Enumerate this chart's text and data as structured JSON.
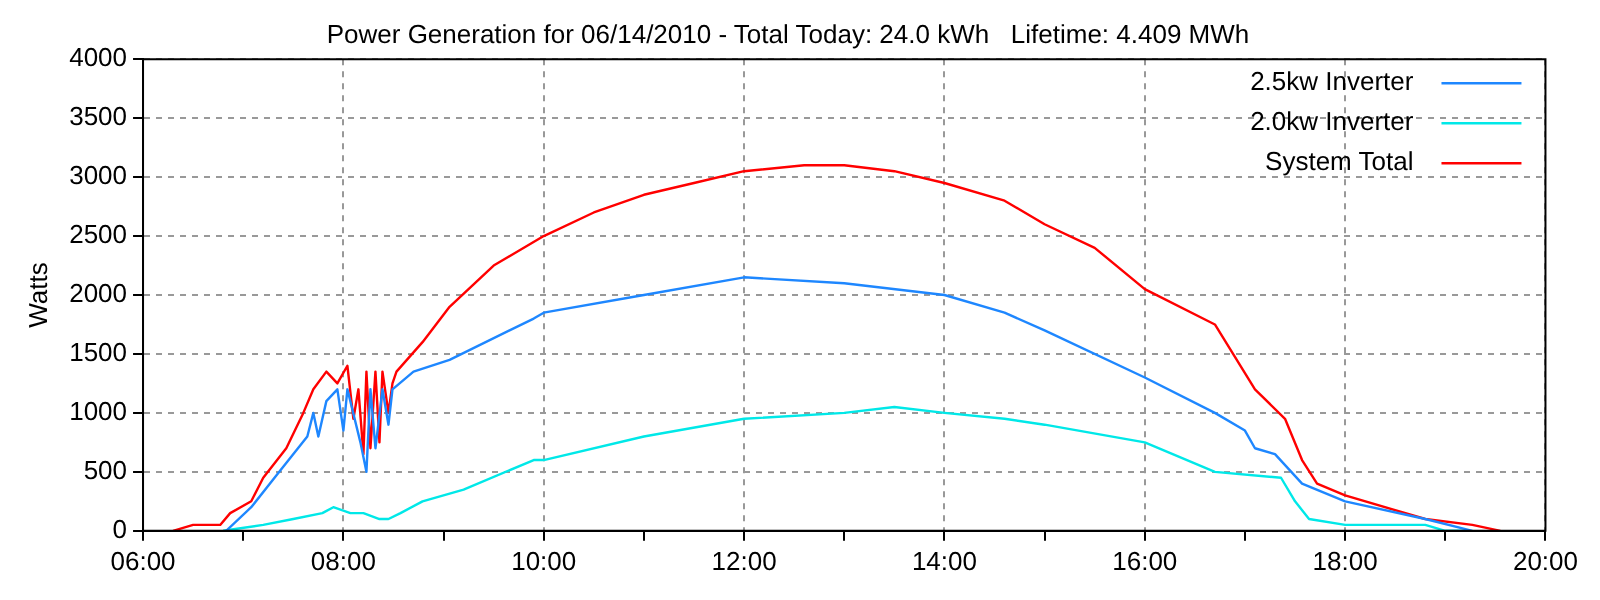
{
  "chart_data": {
    "type": "line",
    "title": "Power Generation for 06/14/2010 - Total Today: 24.0 kWh   Lifetime: 4.409 MWh",
    "ylabel": "Watts",
    "xlim": [
      6,
      20
    ],
    "xticks": [
      {
        "value": 6,
        "label": "06:00"
      },
      {
        "value": 7,
        "label": null
      },
      {
        "value": 8,
        "label": "08:00"
      },
      {
        "value": 9,
        "label": null
      },
      {
        "value": 10,
        "label": "10:00"
      },
      {
        "value": 11,
        "label": null
      },
      {
        "value": 12,
        "label": "12:00"
      },
      {
        "value": 13,
        "label": null
      },
      {
        "value": 14,
        "label": "14:00"
      },
      {
        "value": 15,
        "label": null
      },
      {
        "value": 16,
        "label": "16:00"
      },
      {
        "value": 17,
        "label": null
      },
      {
        "value": 18,
        "label": "18:00"
      },
      {
        "value": 19,
        "label": null
      },
      {
        "value": 20,
        "label": "20:00"
      }
    ],
    "ylim": [
      0,
      4000
    ],
    "yticks": [
      0,
      500,
      1000,
      1500,
      2000,
      2500,
      3000,
      3500,
      4000
    ],
    "grid": true,
    "legend": "top right",
    "marker": "none",
    "line_style": "solid",
    "series": [
      {
        "name": "2.5kw Inverter",
        "color": "#1e87ff",
        "x": [
          6.83,
          7.08,
          7.36,
          7.64,
          7.7,
          7.75,
          7.83,
          7.94,
          8.0,
          8.04,
          8.17,
          8.23,
          8.27,
          8.32,
          8.39,
          8.45,
          8.49,
          8.7,
          9.06,
          9.9,
          10,
          11,
          12,
          13,
          14,
          14.6,
          15,
          16,
          16.7,
          17.0,
          17.1,
          17.3,
          17.57,
          18,
          18.8,
          19.27
        ],
        "values": [
          0,
          200,
          500,
          800,
          1000,
          800,
          1100,
          1200,
          850,
          1200,
          750,
          500,
          1200,
          700,
          1200,
          900,
          1200,
          1350,
          1450,
          1800,
          1850,
          2000,
          2150,
          2100,
          2000,
          1850,
          1700,
          1300,
          1000,
          850,
          700,
          650,
          400,
          250,
          100,
          0
        ]
      },
      {
        "name": "2.0kw Inverter",
        "color": "#00e8e8",
        "x": [
          6.8,
          7.2,
          7.5,
          7.79,
          7.9,
          8.07,
          8.2,
          8.36,
          8.45,
          8.57,
          8.79,
          9.2,
          9.9,
          10,
          11,
          12,
          13,
          13.5,
          14,
          14.6,
          15,
          16,
          16.7,
          17.36,
          17.5,
          17.64,
          18,
          18.8,
          19.0,
          19.2
        ],
        "values": [
          0,
          50,
          100,
          150,
          200,
          150,
          150,
          100,
          100,
          150,
          250,
          350,
          600,
          600,
          800,
          950,
          1000,
          1050,
          1000,
          950,
          900,
          750,
          500,
          450,
          250,
          100,
          50,
          50,
          0,
          0
        ]
      },
      {
        "name": "System Total",
        "color": "#ff0000",
        "x": [
          6.3,
          6.5,
          6.77,
          6.87,
          7.08,
          7.2,
          7.43,
          7.6,
          7.7,
          7.83,
          7.94,
          8.04,
          8.1,
          8.15,
          8.2,
          8.23,
          8.27,
          8.32,
          8.36,
          8.39,
          8.45,
          8.49,
          8.53,
          8.79,
          9.06,
          9.5,
          10,
          10.5,
          11,
          11.5,
          12,
          12.6,
          13,
          13.5,
          14,
          14.6,
          15,
          15.5,
          16,
          16.7,
          17.1,
          17.4,
          17.57,
          17.72,
          18,
          18.8,
          19.27,
          19.55
        ],
        "values": [
          0,
          50,
          50,
          150,
          250,
          450,
          700,
          1000,
          1200,
          1350,
          1250,
          1400,
          950,
          1200,
          650,
          1350,
          700,
          1350,
          750,
          1350,
          1000,
          1250,
          1350,
          1600,
          1900,
          2250,
          2500,
          2700,
          2850,
          2950,
          3050,
          3100,
          3100,
          3050,
          2950,
          2800,
          2600,
          2400,
          2050,
          1750,
          1200,
          950,
          600,
          400,
          300,
          100,
          50,
          0
        ]
      }
    ]
  }
}
